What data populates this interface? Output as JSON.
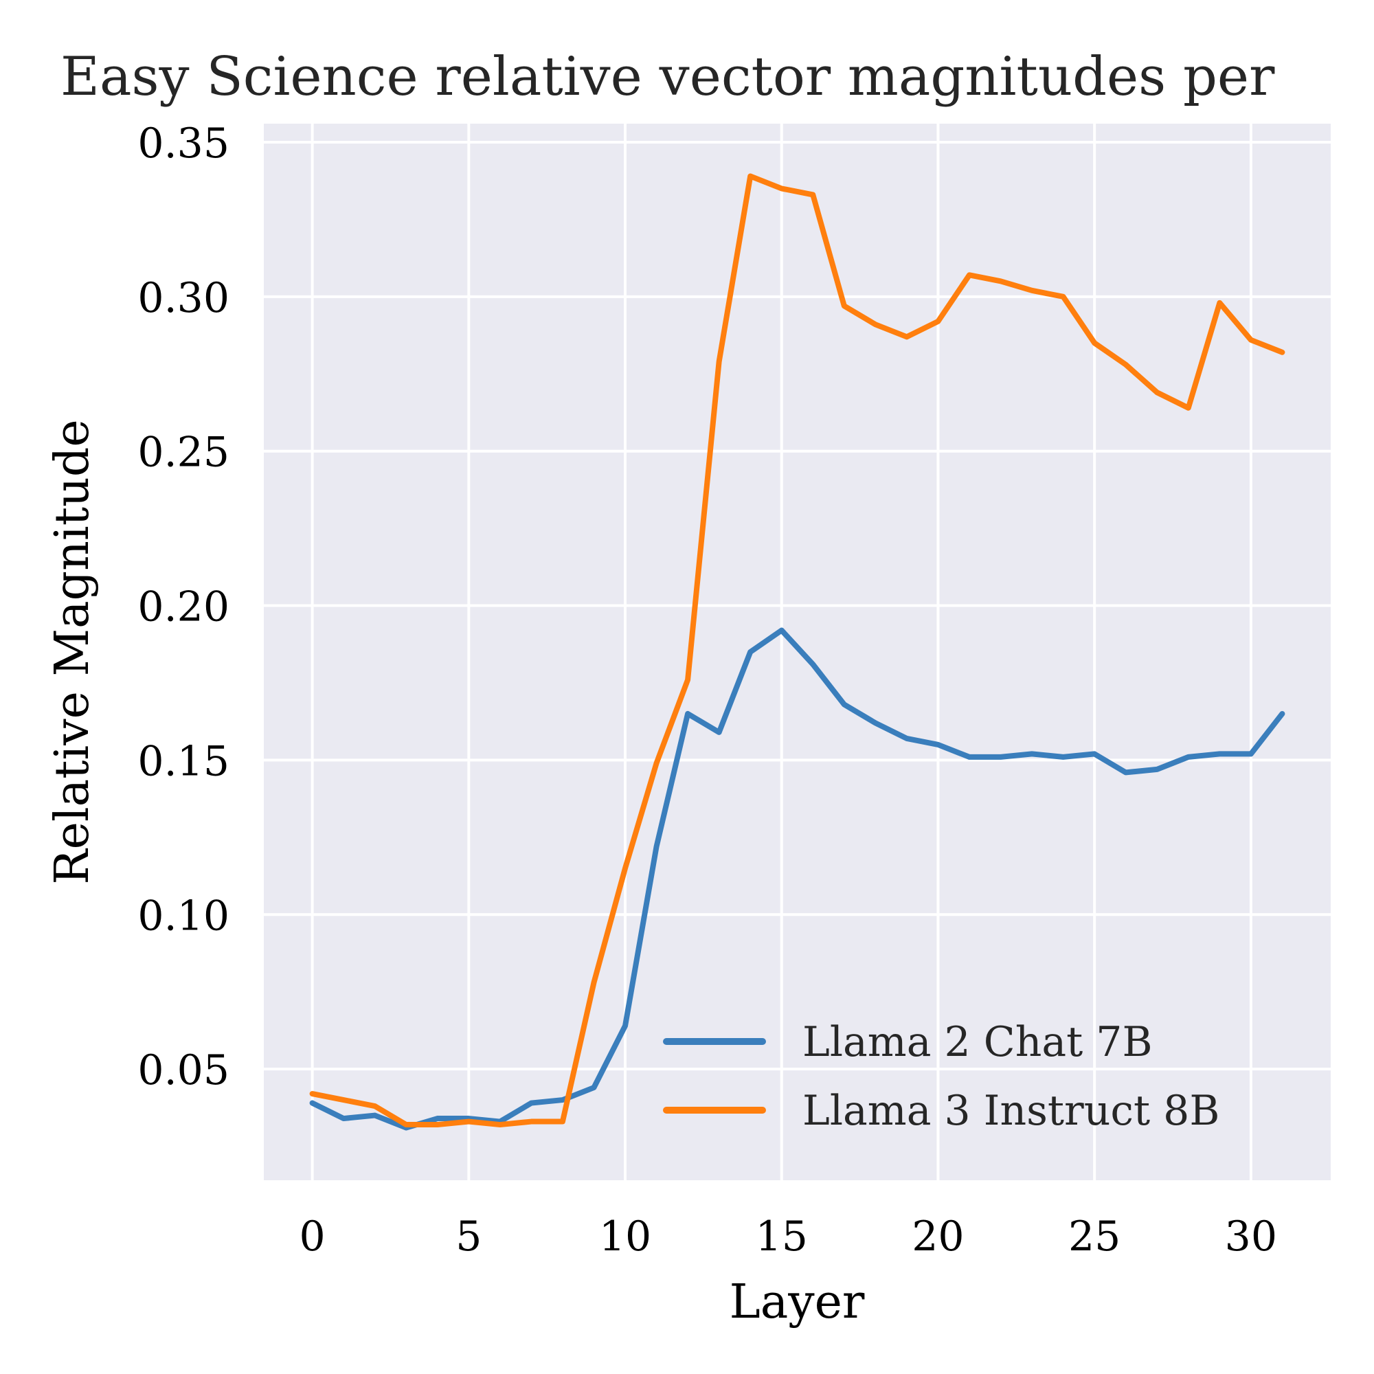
{
  "chart_data": {
    "type": "line",
    "title": "Easy Science relative vector magnitudes per",
    "xlabel": "Layer",
    "ylabel": "Relative Magnitude",
    "xlim": [
      -1.55,
      32.55
    ],
    "ylim": [
      0.014,
      0.356
    ],
    "xticks": [
      0,
      5,
      10,
      15,
      20,
      25,
      30
    ],
    "yticks": [
      0.05,
      0.1,
      0.15,
      0.2,
      0.25,
      0.3,
      0.35
    ],
    "ytick_labels": [
      "0.05",
      "0.10",
      "0.15",
      "0.20",
      "0.25",
      "0.30",
      "0.35"
    ],
    "grid": true,
    "legend_position": "lower-right",
    "background": "#eaeaf2",
    "x": [
      0,
      1,
      2,
      3,
      4,
      5,
      6,
      7,
      8,
      9,
      10,
      11,
      12,
      13,
      14,
      15,
      16,
      17,
      18,
      19,
      20,
      21,
      22,
      23,
      24,
      25,
      26,
      27,
      28,
      29,
      30,
      31
    ],
    "series": [
      {
        "name": "Llama 2 Chat 7B",
        "color": "#3a7ebc",
        "values": [
          0.039,
          0.034,
          0.035,
          0.031,
          0.034,
          0.034,
          0.033,
          0.039,
          0.04,
          0.044,
          0.064,
          0.122,
          0.165,
          0.159,
          0.185,
          0.192,
          0.181,
          0.168,
          0.162,
          0.157,
          0.155,
          0.151,
          0.151,
          0.152,
          0.151,
          0.152,
          0.146,
          0.147,
          0.151,
          0.152,
          0.152,
          0.165
        ]
      },
      {
        "name": "Llama 3 Instruct 8B",
        "color": "#ff7f0e",
        "values": [
          0.042,
          0.04,
          0.038,
          0.032,
          0.032,
          0.033,
          0.032,
          0.033,
          0.033,
          0.078,
          0.115,
          0.149,
          0.176,
          0.279,
          0.339,
          0.335,
          0.333,
          0.297,
          0.291,
          0.287,
          0.292,
          0.307,
          0.305,
          0.302,
          0.3,
          0.285,
          0.278,
          0.269,
          0.264,
          0.298,
          0.286,
          0.282
        ]
      }
    ]
  }
}
